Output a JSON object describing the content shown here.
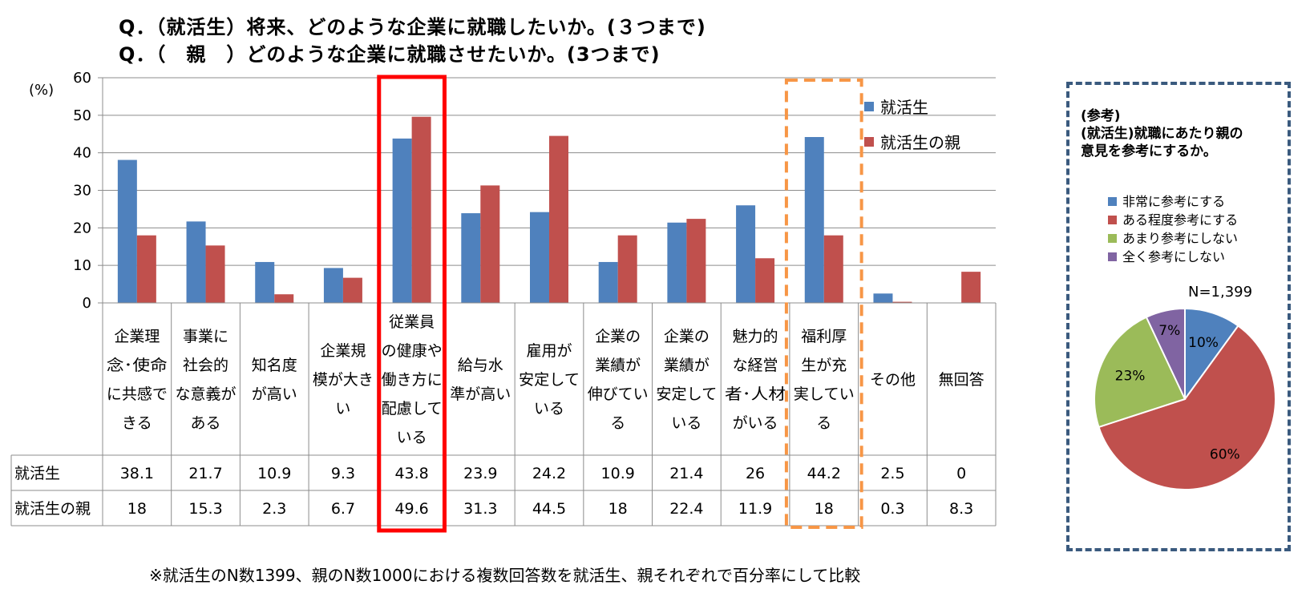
{
  "questions": {
    "q1": "Q．（就活生）将来、どのような企業に就職したいか。(３つまで)",
    "q2": "Q．（　親　）どのような企業に就職させたいか。(3つまで)"
  },
  "chart_data": [
    {
      "type": "bar",
      "ylabel": "(%)",
      "ylim": [
        0,
        60
      ],
      "yticks": [
        "0",
        "10",
        "20",
        "30",
        "40",
        "50",
        "60"
      ],
      "grid": true,
      "legend_position": "top-right",
      "categories": [
        [
          "企業理",
          "念･使命",
          "に共感で",
          "きる"
        ],
        [
          "事業に",
          "社会的",
          "な意義が",
          "ある"
        ],
        [
          "知名度",
          "が高い"
        ],
        [
          "企業規",
          "模が大き",
          "い"
        ],
        [
          "従業員",
          "の健康や",
          "働き方に",
          "配慮して",
          "いる"
        ],
        [
          "給与水",
          "準が高い"
        ],
        [
          "雇用が",
          "安定して",
          "いる"
        ],
        [
          "企業の",
          "業績が",
          "伸びてい",
          "る"
        ],
        [
          "企業の",
          "業績が",
          "安定して",
          "いる"
        ],
        [
          "魅力的",
          "な経営",
          "者･人材",
          "がいる"
        ],
        [
          "福利厚",
          "生が充",
          "実してい",
          "る"
        ],
        [
          "その他"
        ],
        [
          "無回答"
        ]
      ],
      "series": [
        {
          "name": "就活生",
          "color": "#4f81bd",
          "values": [
            38.1,
            21.7,
            10.9,
            9.3,
            43.8,
            23.9,
            24.2,
            10.9,
            21.4,
            26,
            44.2,
            2.5,
            0
          ],
          "table_values": [
            "38.1",
            "21.7",
            "10.9",
            "9.3",
            "43.8",
            "23.9",
            "24.2",
            "10.9",
            "21.4",
            "26",
            "44.2",
            "2.5",
            "0"
          ]
        },
        {
          "name": "就活生の親",
          "color": "#c0504d",
          "values": [
            18,
            15.3,
            2.3,
            6.7,
            49.6,
            31.3,
            44.5,
            18,
            22.4,
            11.9,
            18,
            0.3,
            8.3
          ],
          "table_values": [
            "18",
            "15.3",
            "2.3",
            "6.7",
            "49.6",
            "31.3",
            "44.5",
            "18",
            "22.4",
            "11.9",
            "18",
            "0.3",
            "8.3"
          ]
        }
      ],
      "highlights": [
        {
          "category_index": 4,
          "style": "solid",
          "color": "#ff0000"
        },
        {
          "category_index": 10,
          "style": "dashed",
          "color": "#f79646"
        }
      ]
    },
    {
      "type": "pie",
      "title_lines": [
        "(参考)",
        "(就活生)就職にあたり親の",
        "意見を参考にするか。"
      ],
      "n_label": "N=1,399",
      "slices": [
        {
          "label": "非常に参考にする",
          "value": 10,
          "display": "10%",
          "color": "#4f81bd"
        },
        {
          "label": "ある程度参考にする",
          "value": 60,
          "display": "60%",
          "color": "#c0504d"
        },
        {
          "label": "あまり参考にしない",
          "value": 23,
          "display": "23%",
          "color": "#9bbb59"
        },
        {
          "label": "全く参考にしない",
          "value": 7,
          "display": "7%",
          "color": "#8064a2"
        }
      ]
    }
  ],
  "footnote": "※就活生のN数1399、親のN数1000における複数回答数を就活生、親それぞれで百分率にして比較"
}
